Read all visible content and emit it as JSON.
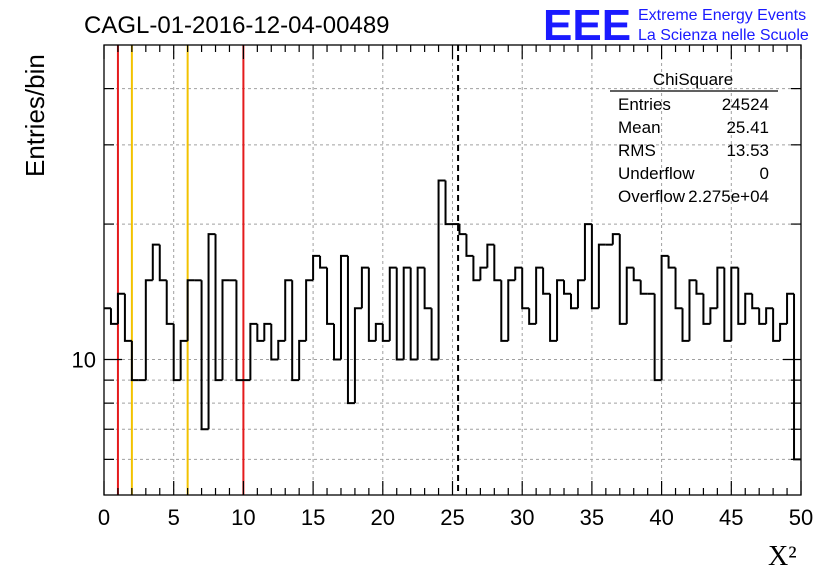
{
  "chart_data": {
    "type": "histogram",
    "title": "CAGL-01-2016-12-04-00489",
    "xlabel": "X²",
    "ylabel": "Entries/bin",
    "xlim": [
      0,
      50
    ],
    "ylim": [
      5,
      50
    ],
    "y_scale": "log",
    "grid": true,
    "x_ticks": [
      "0",
      "5",
      "10",
      "15",
      "20",
      "25",
      "30",
      "35",
      "40",
      "45",
      "50"
    ],
    "y_ticks": [
      "10"
    ],
    "bin_width": 0.5,
    "values": [
      13,
      12,
      14,
      11,
      9,
      9,
      15,
      18,
      15,
      12,
      9,
      11,
      15,
      15,
      7,
      19,
      9,
      15,
      15,
      9,
      9,
      12,
      11,
      12,
      10,
      11,
      15,
      9,
      11,
      15,
      17,
      16,
      12,
      10,
      17,
      8,
      13,
      16,
      11,
      12,
      11,
      16,
      10,
      16,
      10,
      16,
      13,
      10,
      25,
      20,
      20,
      19,
      17,
      15,
      16,
      18,
      15,
      11,
      15,
      16,
      13,
      12,
      16,
      14,
      11,
      15,
      14,
      13,
      15,
      20,
      13,
      18,
      18,
      19,
      12,
      16,
      15,
      14,
      14,
      9,
      17,
      16,
      13,
      11,
      15,
      14,
      12,
      13,
      16,
      11,
      16,
      12,
      14,
      13,
      12,
      13,
      11,
      12,
      14,
      6
    ],
    "vertical_lines": [
      {
        "x": 1,
        "color": "#e41a1c",
        "style": "solid"
      },
      {
        "x": 2,
        "color": "#f2c200",
        "style": "solid"
      },
      {
        "x": 6,
        "color": "#f2c200",
        "style": "solid"
      },
      {
        "x": 10,
        "color": "#e41a1c",
        "style": "solid"
      },
      {
        "x": 25.4,
        "color": "#000000",
        "style": "dashed"
      }
    ],
    "stats": {
      "title": "ChiSquare",
      "rows": [
        {
          "label": "Entries",
          "value": "24524"
        },
        {
          "label": "Mean",
          "value": "25.41"
        },
        {
          "label": "RMS",
          "value": "13.53"
        },
        {
          "label": "Underflow",
          "value": "0"
        },
        {
          "label": "Overflow",
          "value": "2.275e+04"
        }
      ]
    }
  },
  "logo": {
    "mark": "EEE",
    "line1": "Extreme Energy Events",
    "line2": "La Scienza nelle Scuole",
    "color": "#1a1aff"
  }
}
